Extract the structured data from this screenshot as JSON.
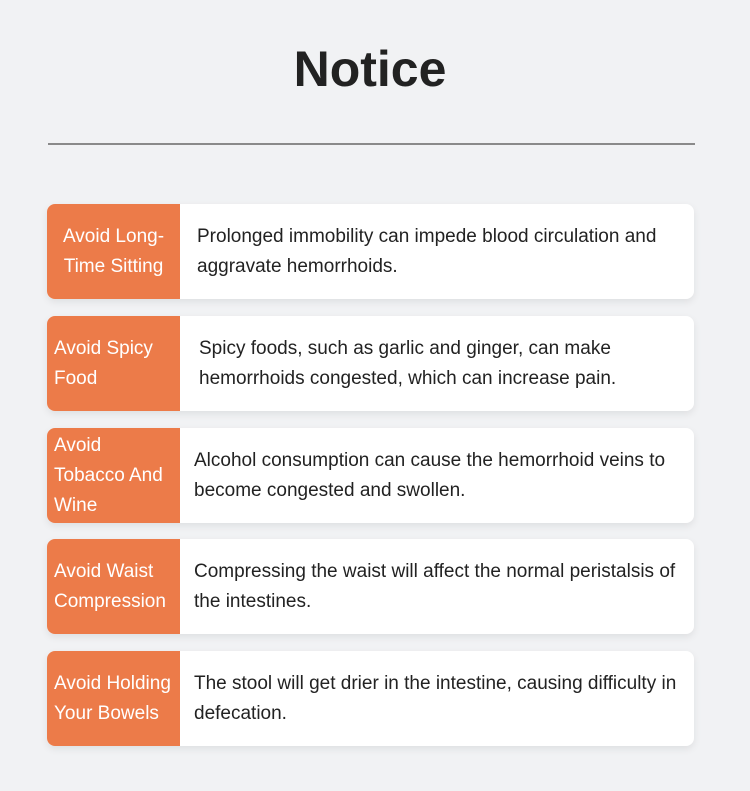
{
  "title": "Notice",
  "brand_color": "#ec7b49",
  "items": [
    {
      "label": "Avoid Long-Time Sitting",
      "text": "Prolonged immobility can impede blood circulation and aggravate hemorrhoids."
    },
    {
      "label": "Avoid Spicy Food",
      "text": "Spicy foods, such as garlic and ginger, can make hemorrhoids congested, which can increase pain."
    },
    {
      "label": "Avoid Tobacco And Wine",
      "text": "Alcohol consumption can cause the hemorrhoid veins to become congested and swollen."
    },
    {
      "label": "Avoid Waist Compression",
      "text": "Compressing the waist will affect the normal peristalsis of the intestines."
    },
    {
      "label": "Avoid Holding Your Bowels",
      "text": "The stool will get drier in the intestine, causing difficulty in defecation."
    }
  ]
}
